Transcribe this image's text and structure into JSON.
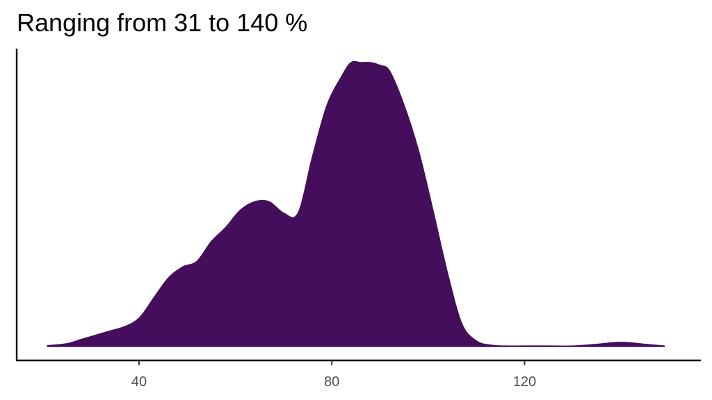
{
  "chart_data": {
    "type": "area",
    "title": "Ranging from 31 to 140 %",
    "xlabel": "",
    "ylabel": "",
    "xlim": [
      18,
      149
    ],
    "ylim": [
      0,
      1
    ],
    "x_ticks": [
      40,
      80,
      120
    ],
    "x_tick_labels": [
      "40",
      "80",
      "120"
    ],
    "grid": false,
    "legend": "none",
    "fill_color": "#440e5c",
    "series": [
      {
        "x": [
          21,
          25,
          28,
          31,
          34,
          37,
          40,
          43,
          46,
          49,
          52,
          55,
          58,
          61,
          64,
          67,
          70,
          73,
          76,
          79,
          82,
          84,
          86,
          88,
          90,
          92,
          95,
          98,
          101,
          104,
          107,
          110,
          113,
          116,
          120,
          125,
          130,
          135,
          140,
          145,
          149
        ],
        "y": [
          0.003,
          0.01,
          0.025,
          0.04,
          0.055,
          0.07,
          0.1,
          0.17,
          0.24,
          0.28,
          0.3,
          0.37,
          0.42,
          0.48,
          0.51,
          0.51,
          0.47,
          0.47,
          0.67,
          0.85,
          0.95,
          1.0,
          1.0,
          1.0,
          0.99,
          0.97,
          0.85,
          0.69,
          0.48,
          0.26,
          0.08,
          0.02,
          0.005,
          0.002,
          0.002,
          0.002,
          0.002,
          0.008,
          0.015,
          0.008,
          0.002
        ]
      }
    ]
  }
}
